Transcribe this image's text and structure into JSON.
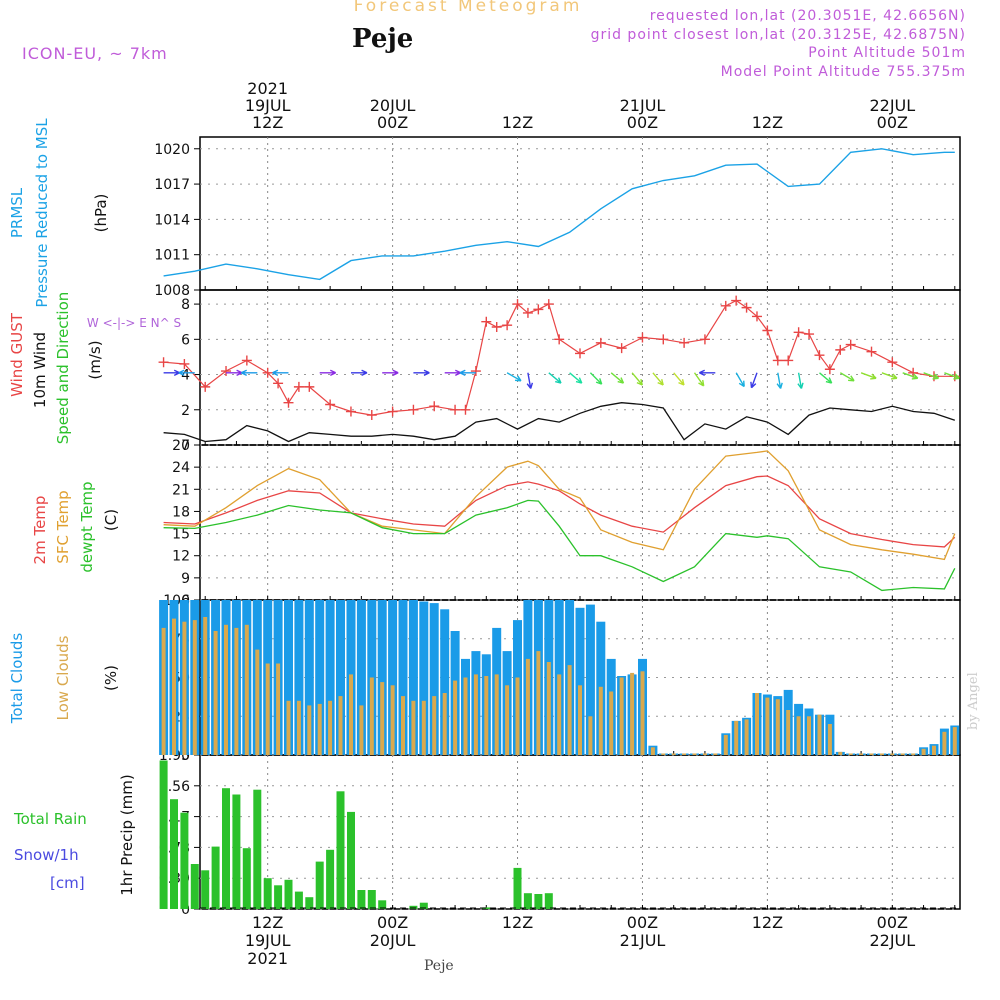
{
  "header": {
    "title": "Forecast Meteogram",
    "location": "Peje",
    "model": "ICON-EU, ~ 7km",
    "requested_point": "requested lon,lat (20.3051E, 42.6656N)",
    "grid_point": "grid point closest lon,lat (20.3125E, 42.6875N)",
    "point_altitude": "Point Altitude 501m",
    "model_altitude": "Model Point Altitude 755.375m",
    "footer": "Peje",
    "credit": "by Angel"
  },
  "colors": {
    "pressure": "#1ba2e6",
    "gust": "#e84545",
    "wind": "#111111",
    "temp2m": "#e84545",
    "sfc_temp": "#e0a030",
    "dewpoint": "#2bc12b",
    "total_clouds": "#1a9be8",
    "low_clouds": "#d9a94e",
    "precip": "#2bc12b",
    "snow": "#4a4ae0",
    "compass": "#b065d9"
  },
  "chart_data": [
    {
      "type": "line",
      "name": "pressure",
      "ylabel": [
        "PRMSL",
        "Pressure Reduced to MSL",
        "(hPa)"
      ],
      "ylim": [
        1008,
        1021
      ],
      "ticks": [
        "1008",
        "1011",
        "1014",
        "1017",
        "1020"
      ],
      "x_hours": [
        0,
        3,
        6,
        9,
        12,
        15,
        18,
        21,
        24,
        27,
        30,
        33,
        36,
        39,
        42,
        45,
        48,
        51,
        54,
        57,
        60,
        63,
        66,
        69,
        72,
        75,
        76
      ],
      "x_time_labels": {
        "top": [
          {
            "hour": 10,
            "lines": [
              "2021",
              "19JUL",
              "12Z"
            ]
          },
          {
            "hour": 22,
            "lines": [
              "20JUL",
              "00Z"
            ]
          },
          {
            "hour": 34,
            "lines": [
              "12Z"
            ]
          },
          {
            "hour": 46,
            "lines": [
              "21JUL",
              "00Z"
            ]
          },
          {
            "hour": 58,
            "lines": [
              "12Z"
            ]
          },
          {
            "hour": 70,
            "lines": [
              "22JUL",
              "00Z"
            ]
          }
        ],
        "bottom": [
          {
            "hour": 10,
            "lines": [
              "12Z",
              "19JUL",
              "2021"
            ]
          },
          {
            "hour": 22,
            "lines": [
              "00Z",
              "20JUL"
            ]
          },
          {
            "hour": 34,
            "lines": [
              "12Z"
            ]
          },
          {
            "hour": 46,
            "lines": [
              "00Z",
              "21JUL"
            ]
          },
          {
            "hour": 58,
            "lines": [
              "12Z"
            ]
          },
          {
            "hour": 70,
            "lines": [
              "00Z",
              "22JUL"
            ]
          }
        ]
      },
      "values": [
        1009.2,
        1009.6,
        1010.2,
        1009.8,
        1009.3,
        1008.9,
        1010.5,
        1010.9,
        1010.9,
        1011.3,
        1011.8,
        1012.1,
        1011.7,
        1012.9,
        1014.9,
        1016.6,
        1017.3,
        1017.7,
        1018.6,
        1018.7,
        1016.8,
        1017.0,
        1019.7,
        1020.0,
        1019.5,
        1019.7,
        1019.7
      ]
    },
    {
      "type": "line",
      "name": "wind",
      "ylabel": [
        "Wind GUST",
        "10m Wind",
        "Speed and Direction",
        "(m/s)"
      ],
      "compass": "W <-|-> E  N^ S",
      "ylim": [
        0,
        8.8
      ],
      "ticks": [
        "0",
        "2",
        "4",
        "6",
        "8"
      ],
      "gust": {
        "x_hours": [
          0,
          2,
          4,
          6,
          8,
          10,
          11,
          12,
          13,
          14,
          16,
          18,
          20,
          22,
          24,
          26,
          28,
          29,
          30,
          31,
          32,
          33,
          34,
          35,
          36,
          37,
          38,
          40,
          42,
          44,
          46,
          48,
          50,
          52,
          54,
          55,
          56,
          57,
          58,
          59,
          60,
          61,
          62,
          63,
          64,
          65,
          66,
          68,
          70,
          72,
          74,
          76
        ],
        "values": [
          4.7,
          4.6,
          3.3,
          4.2,
          4.8,
          4.1,
          3.5,
          2.4,
          3.3,
          3.3,
          2.3,
          1.9,
          1.7,
          1.9,
          2.0,
          2.2,
          2.0,
          2.0,
          4.2,
          7.0,
          6.7,
          6.8,
          8.0,
          7.5,
          7.7,
          8.0,
          6.0,
          5.2,
          5.8,
          5.5,
          6.1,
          6.0,
          5.8,
          6.0,
          7.9,
          8.2,
          7.8,
          7.3,
          6.5,
          4.8,
          4.8,
          6.4,
          6.3,
          5.1,
          4.3,
          5.4,
          5.7,
          5.3,
          4.7,
          4.1,
          3.9,
          3.9
        ]
      },
      "wind": {
        "x_hours": [
          0,
          2,
          4,
          6,
          8,
          10,
          12,
          14,
          16,
          18,
          20,
          22,
          24,
          26,
          28,
          30,
          32,
          34,
          36,
          38,
          40,
          42,
          44,
          46,
          48,
          50,
          52,
          54,
          56,
          58,
          60,
          62,
          64,
          66,
          68,
          70,
          72,
          74,
          76
        ],
        "values": [
          0.7,
          0.6,
          0.2,
          0.3,
          1.1,
          0.8,
          0.2,
          0.7,
          0.6,
          0.5,
          0.5,
          0.6,
          0.5,
          0.3,
          0.5,
          1.3,
          1.5,
          0.9,
          1.5,
          1.3,
          1.8,
          2.2,
          2.4,
          2.3,
          2.1,
          0.3,
          1.2,
          0.9,
          1.6,
          1.3,
          0.6,
          1.7,
          2.1,
          2.0,
          1.9,
          2.2,
          1.9,
          1.8,
          1.4
        ]
      },
      "direction_arrows": {
        "x_hours": [
          0,
          3,
          6,
          9,
          12,
          15,
          18,
          21,
          24,
          27,
          30,
          33,
          35,
          37,
          39,
          41,
          43,
          45,
          47,
          49,
          51,
          53,
          55,
          57,
          59,
          61,
          63,
          65,
          67,
          69,
          71,
          73,
          75
        ],
        "toward_deg": [
          90,
          270,
          90,
          270,
          270,
          90,
          90,
          90,
          90,
          90,
          270,
          120,
          170,
          130,
          130,
          135,
          130,
          140,
          140,
          140,
          145,
          270,
          150,
          200,
          170,
          170,
          130,
          120,
          110,
          110,
          110,
          110,
          110
        ],
        "colors": [
          "#3a3ae6",
          "#1a9be8",
          "#8a2be2",
          "#1a9be8",
          "#1a9be8",
          "#8a2be2",
          "#3a3ae6",
          "#8a2be2",
          "#3a3ae6",
          "#8a2be2",
          "#1a9be8",
          "#1ab0e0",
          "#3a3ae6",
          "#14d0b0",
          "#1ae0a0",
          "#38e05a",
          "#70e03a",
          "#90e030",
          "#b0e030",
          "#c0e030",
          "#90e030",
          "#3a3ae6",
          "#1ab0e0",
          "#3a3ae6",
          "#1ab0e0",
          "#14d0b0",
          "#38e05a",
          "#70e03a",
          "#90e030",
          "#90e030",
          "#70e03a",
          "#70e03a",
          "#70e03a"
        ]
      }
    },
    {
      "type": "line",
      "name": "temperature",
      "ylabel": [
        "2m Temp",
        "SFC Temp",
        "dewpt Temp",
        "(C)"
      ],
      "ylim": [
        6,
        27
      ],
      "ticks": [
        "6",
        "9",
        "12",
        "15",
        "18",
        "21",
        "24",
        "27"
      ],
      "x_hours": [
        0,
        3,
        6,
        9,
        12,
        15,
        18,
        21,
        24,
        27,
        30,
        33,
        35,
        36,
        38,
        40,
        42,
        45,
        48,
        51,
        54,
        57,
        58,
        60,
        63,
        66,
        69,
        72,
        75,
        76
      ],
      "series": [
        {
          "name": "2m Temp",
          "values": [
            16.5,
            16.3,
            17.8,
            19.5,
            20.8,
            20.5,
            17.8,
            17.0,
            16.3,
            16.0,
            19.5,
            21.5,
            22.0,
            21.7,
            20.8,
            19.0,
            17.5,
            16.0,
            15.2,
            18.5,
            21.5,
            22.7,
            22.8,
            21.5,
            17.0,
            15.0,
            14.2,
            13.5,
            13.2,
            14.5
          ]
        },
        {
          "name": "SFC Temp",
          "values": [
            16.2,
            16.0,
            18.5,
            21.5,
            23.8,
            22.3,
            17.8,
            16.0,
            15.5,
            15.0,
            20.0,
            24.0,
            24.8,
            24.2,
            21.0,
            19.8,
            15.5,
            13.8,
            12.8,
            21.0,
            25.5,
            26.0,
            26.2,
            23.5,
            15.5,
            13.5,
            12.8,
            12.2,
            11.5,
            15.0
          ]
        },
        {
          "name": "dewpt Temp",
          "values": [
            15.8,
            15.7,
            16.5,
            17.5,
            18.8,
            18.2,
            17.8,
            15.8,
            15.0,
            15.0,
            17.5,
            18.5,
            19.5,
            19.4,
            16.0,
            12.0,
            12.0,
            10.5,
            8.5,
            10.5,
            15.0,
            14.5,
            14.7,
            14.3,
            10.5,
            9.8,
            7.3,
            7.7,
            7.5,
            10.3
          ]
        }
      ]
    },
    {
      "type": "bar",
      "name": "clouds",
      "ylabel": [
        "Total Clouds",
        "Low Clouds",
        "(%)"
      ],
      "ylim": [
        0,
        100
      ],
      "ticks": [
        "0",
        "25",
        "50",
        "75",
        "100"
      ],
      "x_hours": [
        0,
        1,
        2,
        3,
        4,
        5,
        6,
        7,
        8,
        9,
        10,
        11,
        12,
        13,
        14,
        15,
        16,
        17,
        18,
        19,
        20,
        21,
        22,
        23,
        24,
        25,
        26,
        27,
        28,
        29,
        30,
        31,
        32,
        33,
        34,
        35,
        36,
        37,
        38,
        39,
        40,
        41,
        42,
        43,
        44,
        45,
        46,
        47,
        48,
        49,
        50,
        51,
        52,
        53,
        54,
        55,
        56,
        57,
        58,
        59,
        60,
        61,
        62,
        63,
        64,
        65,
        66,
        67,
        68,
        69,
        70,
        71,
        72,
        73,
        74,
        75,
        76
      ],
      "series": [
        {
          "name": "Total Clouds",
          "values": [
            100,
            100,
            100,
            100,
            100,
            100,
            100,
            100,
            100,
            100,
            100,
            100,
            100,
            100,
            100,
            100,
            100,
            100,
            100,
            100,
            100,
            100,
            100,
            100,
            100,
            99,
            98,
            94,
            80,
            62,
            67,
            65,
            82,
            67,
            87,
            100,
            100,
            100,
            100,
            100,
            95,
            97,
            86,
            62,
            51,
            52,
            62,
            6,
            1,
            1,
            1,
            1,
            1,
            1,
            14,
            22,
            24,
            40,
            39,
            38,
            42,
            33,
            30,
            26,
            26,
            2,
            1,
            1,
            1,
            1,
            1,
            1,
            1,
            5,
            7,
            17,
            19
          ]
        },
        {
          "name": "Low Clouds",
          "values": [
            82,
            88,
            86,
            87,
            89,
            80,
            84,
            82,
            84,
            68,
            59,
            59,
            35,
            35,
            32,
            33,
            35,
            38,
            52,
            32,
            50,
            47,
            45,
            38,
            35,
            35,
            38,
            40,
            48,
            50,
            52,
            51,
            52,
            45,
            50,
            62,
            67,
            60,
            52,
            58,
            45,
            25,
            44,
            41,
            50,
            53,
            54,
            5,
            1,
            1,
            1,
            1,
            1,
            1,
            13,
            22,
            23,
            40,
            37,
            36,
            29,
            25,
            25,
            26,
            20,
            2,
            1,
            1,
            1,
            1,
            1,
            1,
            1,
            4,
            6,
            15,
            18
          ]
        }
      ]
    },
    {
      "type": "bar",
      "name": "precipitation",
      "ylabel": [
        "Total Rain",
        "Snow/1h",
        "[cm]",
        "1hr Precip (mm)"
      ],
      "ylim": [
        0,
        1.95
      ],
      "ticks": [
        "0",
        "0.39",
        "0.78",
        "1.17",
        "1.56",
        "1.95"
      ],
      "x_hours": [
        0,
        1,
        2,
        3,
        4,
        5,
        6,
        7,
        8,
        9,
        10,
        11,
        12,
        13,
        14,
        15,
        16,
        17,
        18,
        19,
        20,
        21,
        22,
        23,
        24,
        25,
        26,
        27,
        28,
        29,
        30,
        31,
        32,
        33,
        34,
        35,
        36,
        37,
        38,
        39,
        40,
        41,
        42,
        43,
        44,
        45,
        46,
        47,
        48,
        49,
        50,
        51,
        52,
        53,
        54,
        55,
        56,
        57,
        58,
        59,
        60,
        61,
        62,
        63,
        64,
        65,
        66,
        67,
        68,
        69,
        70,
        71,
        72,
        73,
        74,
        75,
        76
      ],
      "series": [
        {
          "name": "Total Rain",
          "values": [
            1.88,
            1.39,
            1.22,
            0.57,
            0.49,
            0.79,
            1.53,
            1.45,
            0.77,
            1.51,
            0.39,
            0.3,
            0.37,
            0.22,
            0.15,
            0.6,
            0.75,
            1.49,
            1.23,
            0.24,
            0.24,
            0.11,
            0,
            0,
            0.04,
            0.08,
            0,
            0,
            0,
            0,
            0,
            0.02,
            0,
            0,
            0.52,
            0.2,
            0.19,
            0.2,
            0,
            0,
            0,
            0,
            0,
            0,
            0,
            0,
            0,
            0,
            0,
            0,
            0,
            0,
            0,
            0,
            0,
            0,
            0,
            0,
            0,
            0,
            0,
            0,
            0,
            0,
            0,
            0,
            0,
            0,
            0,
            0,
            0,
            0,
            0,
            0,
            0,
            0,
            0
          ]
        }
      ]
    }
  ]
}
